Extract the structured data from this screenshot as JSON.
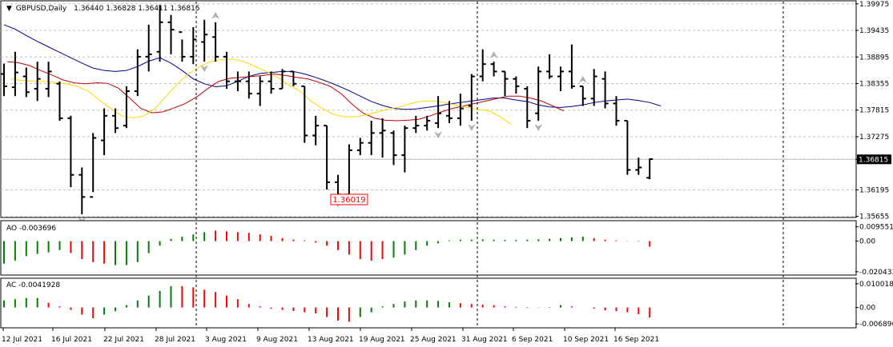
{
  "main_panel": {
    "symbol": "GBPUSD,Daily",
    "ohlc": "1.36440 1.36828 1.36411 1.36815",
    "y_axis_labels": [
      "1.39975",
      "1.39435",
      "1.38895",
      "1.38355",
      "1.37815",
      "1.37275",
      "1.36815",
      "1.36195",
      "1.35655"
    ],
    "current_price": "1.36815",
    "low_label": "1.36019",
    "price_range": [
      1.3565,
      1.4002
    ],
    "bars": [
      [
        1.3876,
        1.381,
        1.3855,
        1.383
      ],
      [
        1.39,
        1.381,
        1.3828,
        1.3858
      ],
      [
        1.3868,
        1.3808,
        1.385,
        1.3818
      ],
      [
        1.388,
        1.38,
        1.3825,
        1.3845
      ],
      [
        1.388,
        1.3808,
        1.3825,
        1.386
      ],
      [
        1.384,
        1.376,
        1.3835,
        1.3765
      ],
      [
        1.377,
        1.3625,
        1.3765,
        1.365
      ],
      [
        1.3665,
        1.357,
        1.365,
        1.3605
      ],
      [
        1.3735,
        1.3615,
        1.3605,
        1.3725
      ],
      [
        1.3785,
        1.369,
        1.372,
        1.377
      ],
      [
        1.3785,
        1.3735,
        1.377,
        1.3745
      ],
      [
        1.383,
        1.3745,
        1.375,
        1.382
      ],
      [
        1.3905,
        1.381,
        1.382,
        1.389
      ],
      [
        1.3955,
        1.386,
        1.389,
        1.3895
      ],
      [
        1.3995,
        1.388,
        1.39,
        1.396
      ],
      [
        1.3975,
        1.3895,
        1.396,
        1.3945
      ],
      [
        1.3925,
        1.388,
        1.394,
        1.389
      ],
      [
        1.395,
        1.3875,
        1.389,
        1.3925
      ],
      [
        1.3965,
        1.388,
        1.392,
        1.3935
      ],
      [
        1.396,
        1.388,
        1.393,
        1.389
      ],
      [
        1.39,
        1.3825,
        1.389,
        1.384
      ],
      [
        1.386,
        1.382,
        1.384,
        1.384
      ],
      [
        1.386,
        1.3805,
        1.384,
        1.3815
      ],
      [
        1.385,
        1.379,
        1.3815,
        1.384
      ],
      [
        1.386,
        1.3815,
        1.384,
        1.3825
      ],
      [
        1.3865,
        1.3825,
        1.3825,
        1.386
      ],
      [
        1.386,
        1.383,
        1.386,
        1.3835
      ],
      [
        1.383,
        1.3715,
        1.383,
        1.373
      ],
      [
        1.377,
        1.371,
        1.373,
        1.375
      ],
      [
        1.375,
        1.362,
        1.375,
        1.3635
      ],
      [
        1.365,
        1.3605,
        1.3635,
        1.361
      ],
      [
        1.3712,
        1.3602,
        1.361,
        1.37
      ],
      [
        1.3725,
        1.369,
        1.37,
        1.3715
      ],
      [
        1.376,
        1.369,
        1.3715,
        1.3735
      ],
      [
        1.3765,
        1.3685,
        1.3735,
        1.374
      ],
      [
        1.374,
        1.367,
        1.3735,
        1.369
      ],
      [
        1.375,
        1.3655,
        1.369,
        1.3745
      ],
      [
        1.377,
        1.3735,
        1.3745,
        1.375
      ],
      [
        1.377,
        1.374,
        1.375,
        1.376
      ],
      [
        1.381,
        1.3745,
        1.3755,
        1.3775
      ],
      [
        1.38,
        1.3755,
        1.377,
        1.3765
      ],
      [
        1.3815,
        1.375,
        1.3765,
        1.3785
      ],
      [
        1.3855,
        1.376,
        1.379,
        1.385
      ],
      [
        1.3905,
        1.384,
        1.385,
        1.3875
      ],
      [
        1.388,
        1.385,
        1.3875,
        1.386
      ],
      [
        1.386,
        1.381,
        1.386,
        1.3845
      ],
      [
        1.385,
        1.3815,
        1.3845,
        1.383
      ],
      [
        1.383,
        1.3745,
        1.3825,
        1.376
      ],
      [
        1.387,
        1.376,
        1.3775,
        1.386
      ],
      [
        1.3895,
        1.3845,
        1.386,
        1.385
      ],
      [
        1.387,
        1.382,
        1.385,
        1.386
      ],
      [
        1.3915,
        1.3825,
        1.386,
        1.383
      ],
      [
        1.383,
        1.379,
        1.383,
        1.3805
      ],
      [
        1.3865,
        1.379,
        1.3805,
        1.385
      ],
      [
        1.386,
        1.3785,
        1.3845,
        1.3795
      ],
      [
        1.381,
        1.375,
        1.3795,
        1.376
      ],
      [
        1.376,
        1.365,
        1.376,
        1.366
      ],
      [
        1.3685,
        1.365,
        1.366,
        1.3665
      ],
      [
        1.3683,
        1.3641,
        1.3644,
        1.3682
      ]
    ],
    "ma_blue": [
      1.3955,
      1.3946,
      1.3933,
      1.3921,
      1.391,
      1.3899,
      1.3888,
      1.3877,
      1.3867,
      1.3862,
      1.386,
      1.3862,
      1.387,
      1.3881,
      1.3888,
      1.3877,
      1.3862,
      1.3845,
      1.3835,
      1.3829,
      1.3831,
      1.384,
      1.385,
      1.3856,
      1.3858,
      1.386,
      1.386,
      1.3855,
      1.3848,
      1.384,
      1.3831,
      1.3821,
      1.381,
      1.3799,
      1.3791,
      1.3785,
      1.3783,
      1.3784,
      1.3787,
      1.379,
      1.3794,
      1.3797,
      1.38,
      1.3803,
      1.3806,
      1.3806,
      1.3802,
      1.3799,
      1.3792,
      1.3788,
      1.3787,
      1.3789,
      1.3792,
      1.3797,
      1.38,
      1.3802,
      1.3804,
      1.3801,
      1.3797,
      1.379
    ],
    "ma_red": [
      1.388,
      1.3878,
      1.3872,
      1.3862,
      1.3853,
      1.3843,
      1.3837,
      1.3835,
      1.3837,
      1.3836,
      1.3826,
      1.3806,
      1.3785,
      1.3776,
      1.3778,
      1.3786,
      1.3795,
      1.3808,
      1.3825,
      1.384,
      1.3846,
      1.3848,
      1.385,
      1.3852,
      1.3855,
      1.3852,
      1.3848,
      1.3845,
      1.3838,
      1.383,
      1.3815,
      1.3793,
      1.3775,
      1.3765,
      1.3761,
      1.376,
      1.3761,
      1.3763,
      1.377,
      1.3778,
      1.3785,
      1.379,
      1.3795,
      1.38,
      1.3805,
      1.381,
      1.381,
      1.3806,
      1.38,
      1.379,
      1.378
    ],
    "ma_yellow": [
      1.3845,
      1.3842,
      1.384,
      1.384,
      1.3838,
      1.3835,
      1.383,
      1.382,
      1.3802,
      1.3785,
      1.377,
      1.3765,
      1.377,
      1.3785,
      1.381,
      1.3835,
      1.3855,
      1.387,
      1.388,
      1.3884,
      1.3885,
      1.388,
      1.387,
      1.386,
      1.3848,
      1.3833,
      1.382,
      1.38,
      1.3785,
      1.3773,
      1.3768,
      1.3768,
      1.3772,
      1.3778,
      1.3784,
      1.3788,
      1.3795,
      1.38,
      1.38,
      1.3797,
      1.3792,
      1.3787,
      1.3783,
      1.378,
      1.3768,
      1.3752
    ]
  },
  "ao_panel": {
    "label": "AO -0.003696",
    "y_axis_labels": [
      "0.009551",
      "0.00",
      "-0.020433"
    ],
    "range": [
      -0.0205,
      0.0099
    ],
    "colors": [
      "green",
      "green",
      "green",
      "green",
      "green",
      "green",
      "red",
      "red",
      "red",
      "red",
      "green",
      "green",
      "green",
      "green",
      "green",
      "green",
      "green",
      "green",
      "green",
      "red",
      "red",
      "red",
      "red",
      "red",
      "red",
      "red",
      "red",
      "red",
      "red",
      "red",
      "red",
      "red",
      "red",
      "red",
      "red",
      "green",
      "green",
      "green",
      "green",
      "green",
      "green",
      "green",
      "green",
      "green",
      "green",
      "green",
      "green",
      "green",
      "green",
      "green",
      "green",
      "green",
      "green",
      "red",
      "red",
      "red",
      "red",
      "red",
      "red"
    ],
    "values": [
      -0.015,
      -0.013,
      -0.01,
      -0.0085,
      -0.0075,
      -0.006,
      -0.008,
      -0.012,
      -0.014,
      -0.015,
      -0.016,
      -0.016,
      -0.014,
      -0.008,
      -0.003,
      0.0015,
      0.003,
      0.0045,
      0.006,
      0.007,
      0.0065,
      0.006,
      0.0055,
      0.0045,
      0.0035,
      0.002,
      0.001,
      0.0005,
      -0.001,
      -0.003,
      -0.006,
      -0.009,
      -0.012,
      -0.013,
      -0.012,
      -0.011,
      -0.009,
      -0.006,
      -0.003,
      -0.0015,
      0.0005,
      0.001,
      0.001,
      0.0012,
      0.001,
      0.0008,
      0.0008,
      0.001,
      0.0012,
      0.0015,
      0.002,
      0.0025,
      0.003,
      0.002,
      0.001,
      0.0005,
      0.0002,
      -0.0003,
      -0.0037
    ]
  },
  "ac_panel": {
    "label": "AC -0.0041928",
    "y_axis_labels": [
      "0.0100182",
      "0.00",
      "-0.0068966"
    ],
    "range": [
      -0.0072,
      0.0103
    ],
    "colors": [
      "green",
      "green",
      "green",
      "green",
      "red",
      "red",
      "red",
      "red",
      "red",
      "green",
      "green",
      "green",
      "green",
      "green",
      "green",
      "green",
      "red",
      "red",
      "red",
      "red",
      "red",
      "red",
      "red",
      "red",
      "red",
      "red",
      "red",
      "red",
      "red",
      "red",
      "red",
      "red",
      "green",
      "green",
      "green",
      "green",
      "green",
      "green",
      "green",
      "green",
      "green",
      "red",
      "red",
      "red",
      "red",
      "red",
      "red",
      "red",
      "red",
      "red",
      "green",
      "red",
      "red",
      "red",
      "red",
      "red",
      "red",
      "red",
      "red"
    ],
    "values": [
      0.003,
      0.0035,
      0.004,
      0.004,
      0.002,
      0.0005,
      -0.001,
      -0.003,
      -0.0045,
      -0.003,
      -0.0015,
      0.001,
      0.003,
      0.005,
      0.007,
      0.009,
      0.009,
      0.0085,
      0.0075,
      0.0065,
      0.005,
      0.0035,
      0.0015,
      0.0005,
      -0.0005,
      -0.001,
      -0.0015,
      -0.002,
      -0.0025,
      -0.004,
      -0.0055,
      -0.006,
      -0.004,
      -0.002,
      0.0005,
      0.0015,
      0.0025,
      0.003,
      0.003,
      0.0028,
      0.0022,
      0.0018,
      0.0015,
      0.0012,
      0.001,
      0.0005,
      0.0003,
      0.0002,
      0.0001,
      0.0002,
      0.001,
      0.0005,
      0.0,
      -0.0005,
      -0.0012,
      -0.0015,
      -0.002,
      -0.0028,
      -0.0042
    ]
  },
  "x_axis_labels": [
    "12 Jul 2021",
    "16 Jul 2021",
    "22 Jul 2021",
    "28 Jul 2021",
    "3 Aug 2021",
    "9 Aug 2021",
    "13 Aug 2021",
    "19 Aug 2021",
    "25 Aug 2021",
    "31 Aug 2021",
    "6 Sep 2021",
    "10 Sep 2021",
    "16 Sep 2021"
  ],
  "colors": {
    "bar": "#000000",
    "ma_blue": "#00008b",
    "ma_red": "#c00000",
    "ma_yellow": "#ffd700",
    "up": "#008000",
    "down": "#ff0000",
    "price_label_bg": "#000000",
    "low_label": "#ff0000"
  }
}
